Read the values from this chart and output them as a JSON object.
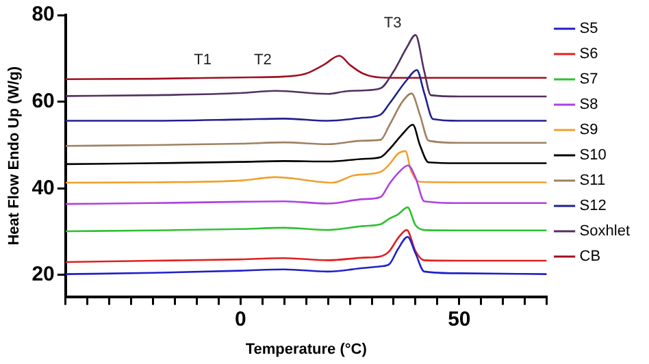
{
  "chart_data": {
    "type": "line",
    "xlabel": "Temperature (°C)",
    "ylabel": "Heat Flow Endo Up (W/g)",
    "xlim": [
      -40,
      70
    ],
    "xticks": [
      {
        "value": -40,
        "label": null
      },
      {
        "value": -35,
        "label": null
      },
      {
        "value": -30,
        "label": null
      },
      {
        "value": -25,
        "label": null
      },
      {
        "value": -20,
        "label": null
      },
      {
        "value": -15,
        "label": null
      },
      {
        "value": -10,
        "label": null
      },
      {
        "value": -5,
        "label": null
      },
      0,
      {
        "value": 5,
        "label": null
      },
      {
        "value": 10,
        "label": null
      },
      {
        "value": 15,
        "label": null
      },
      {
        "value": 20,
        "label": null
      },
      {
        "value": 25,
        "label": null
      },
      {
        "value": 30,
        "label": null
      },
      {
        "value": 35,
        "label": null
      },
      {
        "value": 40,
        "label": null
      },
      {
        "value": 45,
        "label": null
      },
      50,
      {
        "value": 55,
        "label": null
      },
      {
        "value": 60,
        "label": null
      },
      {
        "value": 65,
        "label": null
      },
      {
        "value": 70,
        "label": null
      }
    ],
    "ylim": [
      15,
      80
    ],
    "yticks": [
      20,
      40,
      60,
      80
    ],
    "grid": false,
    "legend": "right",
    "marker": "none",
    "line_style": "solid",
    "annotations": [
      "T1",
      "T2",
      "T3"
    ],
    "series": [
      {
        "name": "S5",
        "color": "#2020c8",
        "x": [
          -40,
          -20,
          0,
          10,
          20,
          28,
          32,
          34,
          36,
          38.2,
          40,
          42,
          50,
          70
        ],
        "values": [
          20.2,
          20.5,
          21.0,
          21.3,
          20.8,
          21.6,
          22.0,
          22.5,
          26.0,
          28.8,
          25.0,
          20.8,
          20.4,
          20.2
        ]
      },
      {
        "name": "S6",
        "color": "#e02020",
        "x": [
          -40,
          -20,
          0,
          10,
          20,
          28,
          32,
          34,
          36,
          38,
          40,
          42,
          50,
          70
        ],
        "values": [
          23.0,
          23.3,
          23.6,
          23.9,
          23.4,
          24.0,
          24.3,
          25.5,
          28.5,
          30.4,
          25.5,
          23.4,
          23.3,
          23.3
        ]
      },
      {
        "name": "S7",
        "color": "#30c030",
        "x": [
          -40,
          -20,
          0,
          10,
          20,
          28,
          32,
          34,
          36,
          38.2,
          40,
          42,
          50,
          70
        ],
        "values": [
          30.1,
          30.3,
          30.6,
          30.9,
          30.4,
          31.3,
          31.7,
          33.0,
          34.0,
          35.6,
          31.5,
          30.4,
          30.3,
          30.3
        ]
      },
      {
        "name": "S8",
        "color": "#b040e0",
        "x": [
          -40,
          -20,
          0,
          10,
          20,
          28,
          32,
          34,
          36,
          38.3,
          40,
          42,
          50,
          70
        ],
        "values": [
          36.4,
          36.6,
          36.9,
          37.0,
          36.5,
          37.5,
          38.0,
          41.0,
          43.5,
          45.3,
          42.5,
          37.0,
          36.6,
          36.6
        ]
      },
      {
        "name": "S9",
        "color": "#f0a030",
        "x": [
          -40,
          -20,
          0,
          8,
          12,
          18,
          21,
          26,
          32,
          34,
          36,
          37.7,
          39,
          41,
          50,
          70
        ],
        "values": [
          41.3,
          41.4,
          41.8,
          42.6,
          42.3,
          41.5,
          41.3,
          43.0,
          43.8,
          45.5,
          48.0,
          48.6,
          44.0,
          41.5,
          41.4,
          41.4
        ]
      },
      {
        "name": "S10",
        "color": "#000000",
        "x": [
          -40,
          -20,
          0,
          10,
          20,
          28,
          32,
          34,
          37,
          39.4,
          41,
          43,
          50,
          70
        ],
        "values": [
          45.6,
          45.8,
          46.1,
          46.3,
          46.2,
          46.8,
          47.2,
          49.0,
          52.5,
          54.7,
          50.0,
          46.0,
          45.8,
          45.8
        ]
      },
      {
        "name": "S11",
        "color": "#a08060",
        "x": [
          -40,
          -20,
          0,
          10,
          20,
          28,
          32,
          34,
          37,
          39.1,
          41,
          43,
          50,
          70
        ],
        "values": [
          49.8,
          50.0,
          50.3,
          50.6,
          50.2,
          51.0,
          51.2,
          54.5,
          60.0,
          61.9,
          57.0,
          51.0,
          50.5,
          50.5
        ]
      },
      {
        "name": "S12",
        "color": "#202090",
        "x": [
          -40,
          -20,
          0,
          10,
          20,
          28,
          32,
          34,
          38,
          40.3,
          42,
          44,
          50,
          70
        ],
        "values": [
          55.6,
          55.6,
          55.9,
          56.1,
          55.6,
          56.3,
          57.0,
          59.5,
          65.0,
          67.3,
          62.0,
          56.0,
          55.6,
          55.6
        ]
      },
      {
        "name": "Soxhlet",
        "color": "#503060",
        "x": [
          -40,
          -20,
          0,
          8,
          20,
          24,
          28,
          32,
          35,
          38,
          40,
          42,
          43.5,
          50,
          70
        ],
        "values": [
          61.3,
          61.5,
          62.0,
          62.5,
          61.8,
          62.4,
          62.6,
          63.1,
          67.0,
          72.5,
          75.4,
          67.0,
          61.5,
          61.2,
          61.2
        ]
      },
      {
        "name": "CB",
        "color": "#a01020",
        "x": [
          -40,
          -20,
          0,
          10,
          15,
          19,
          22.6,
          25,
          28,
          32,
          40,
          70
        ],
        "values": [
          65.2,
          65.3,
          65.6,
          65.8,
          66.5,
          68.5,
          70.6,
          68.5,
          66.5,
          65.6,
          65.5,
          65.5
        ]
      }
    ]
  }
}
